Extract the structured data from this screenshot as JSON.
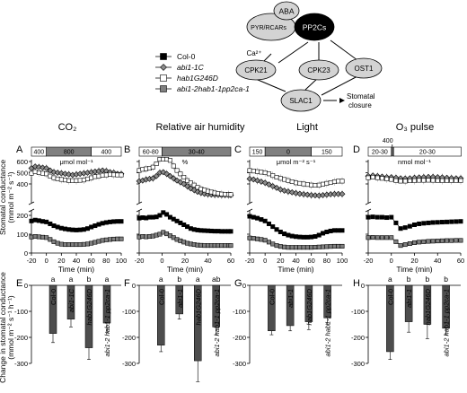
{
  "colors": {
    "col0": "#000000",
    "abi1": "#8c8c8c",
    "hab1": "#ffffff",
    "quad": "#808080",
    "bar_gray": "#808080",
    "bar_dark": "#4d4d4d",
    "node_light": "#d3d3d3",
    "node_dark": "#000000"
  },
  "diagram": {
    "nodes": {
      "aba": "ABA",
      "pyr": "PYR/RCARs",
      "pp2c": "PP2Cs",
      "ca": "Ca²⁺",
      "cpk21": "CPK21",
      "cpk23": "CPK23",
      "ost1": "OST1",
      "slac1": "SLAC1",
      "closure_line1": "Stomatal",
      "closure_line2": "closure"
    }
  },
  "legend": {
    "entries": [
      {
        "label": "Col-0",
        "marker": "square",
        "fill": "#000000"
      },
      {
        "label": "abi1-1C",
        "marker": "diamond",
        "fill": "#8c8c8c"
      },
      {
        "label": "hab1G246D",
        "marker": "square",
        "fill": "#ffffff"
      },
      {
        "label": "abi1-2hab1-1pp2ca-1",
        "marker": "square",
        "fill": "#808080"
      }
    ]
  },
  "axis_labels": {
    "y_top": "Stomatal conductance",
    "y_top_unit": "(mmol m⁻² s⁻¹)",
    "y_bottom": "Change in stomatal conductance",
    "y_bottom_unit": "(mmol m⁻² s⁻¹ h⁻¹)",
    "x_time": "Time (min)"
  },
  "chart_data": [
    {
      "panel": "A",
      "column_title": "CO₂",
      "type": "line",
      "treatment_boxes": [
        "400",
        "800",
        "400"
      ],
      "treatment_unit": "μmol mol⁻¹",
      "x": [
        -20,
        -15,
        -10,
        -5,
        0,
        5,
        10,
        15,
        20,
        25,
        30,
        35,
        40,
        45,
        50,
        55,
        60,
        65,
        70,
        75,
        80,
        85,
        90,
        95,
        100
      ],
      "xticks": [
        -20,
        0,
        20,
        40,
        60,
        80,
        100
      ],
      "yticks_upper": [
        400,
        500,
        600
      ],
      "yticks_lower": [
        0,
        100,
        200
      ],
      "series": [
        {
          "name": "abi1-1C",
          "values": [
            540,
            555,
            550,
            545,
            540,
            520,
            505,
            500,
            495,
            490,
            485,
            480,
            485,
            490,
            495,
            500,
            505,
            510,
            515,
            520,
            515,
            505,
            500,
            490,
            490
          ]
        },
        {
          "name": "hab1G246D",
          "values": [
            495,
            510,
            500,
            495,
            490,
            470,
            455,
            445,
            440,
            435,
            430,
            430,
            430,
            432,
            435,
            445,
            455,
            465,
            470,
            478,
            480,
            485,
            482,
            480,
            480
          ]
        },
        {
          "name": "Col-0",
          "values": [
            170,
            175,
            172,
            168,
            165,
            155,
            145,
            138,
            132,
            128,
            125,
            123,
            122,
            123,
            125,
            130,
            138,
            145,
            152,
            158,
            162,
            165,
            167,
            168,
            168
          ]
        },
        {
          "name": "abi1-2hab1-1pp2ca-1",
          "values": [
            85,
            88,
            86,
            84,
            82,
            72,
            60,
            52,
            47,
            45,
            45,
            45,
            45,
            45,
            46,
            48,
            52,
            57,
            62,
            67,
            70,
            72,
            74,
            75,
            75
          ]
        }
      ],
      "bars": {
        "labels": [
          "Col-0",
          "abi1-1C",
          "hab1G246D",
          "abi1-2 hab1-1 pp2ca-1"
        ],
        "values": [
          -185,
          -130,
          -240,
          -145
        ],
        "errors": [
          35,
          30,
          45,
          35
        ],
        "letters": [
          "a",
          "a",
          "b",
          "a"
        ]
      }
    },
    {
      "panel": "B",
      "column_title": "Relative air humidity",
      "type": "line",
      "treatment_boxes": [
        "60-80",
        "30-40"
      ],
      "treatment_unit": "%",
      "x": [
        -20,
        -17,
        -14,
        -11,
        -8,
        -5,
        -2,
        1,
        4,
        7,
        10,
        13,
        16,
        19,
        22,
        25,
        28,
        31,
        34,
        37,
        40,
        43,
        46,
        49,
        52,
        55,
        58,
        60
      ],
      "xticks": [
        -20,
        0,
        20,
        40,
        60
      ],
      "yticks_upper": [
        400,
        500,
        600
      ],
      "yticks_lower": [
        0,
        100,
        200
      ],
      "series": [
        {
          "name": "abi1-1C",
          "values": [
            425,
            430,
            440,
            445,
            450,
            470,
            500,
            505,
            490,
            470,
            450,
            430,
            415,
            400,
            380,
            360,
            345,
            330,
            320,
            312,
            308,
            305,
            303,
            302,
            300,
            300,
            300,
            300
          ]
        },
        {
          "name": "hab1G246D",
          "values": [
            520,
            530,
            535,
            540,
            550,
            580,
            620,
            720,
            665,
            610,
            560,
            520,
            490,
            460,
            430,
            410,
            390,
            370,
            355,
            345,
            335,
            328,
            320,
            315,
            310,
            308,
            306,
            305
          ]
        },
        {
          "name": "Col-0",
          "values": [
            185,
            188,
            186,
            190,
            190,
            192,
            200,
            215,
            205,
            190,
            180,
            170,
            160,
            150,
            140,
            130,
            125,
            122,
            120,
            119,
            118,
            117,
            116,
            116,
            115,
            115,
            115,
            115
          ]
        },
        {
          "name": "abi1-2hab1-1pp2ca-1",
          "values": [
            85,
            88,
            86,
            88,
            90,
            95,
            100,
            110,
            102,
            92,
            82,
            72,
            65,
            58,
            52,
            48,
            45,
            42,
            41,
            40,
            40,
            40,
            40,
            40,
            40,
            40,
            40,
            40
          ]
        }
      ],
      "bars": {
        "labels": [
          "Col-0",
          "abi1-1",
          "hab1G246D",
          "abi1-2 hab1-1 pp2ca-1"
        ],
        "values": [
          -230,
          -110,
          -290,
          -160
        ],
        "errors": [
          25,
          20,
          80,
          30
        ],
        "letters": [
          "a",
          "b",
          "a",
          "ab"
        ]
      }
    },
    {
      "panel": "C",
      "column_title": "Light",
      "type": "line",
      "treatment_boxes": [
        "150",
        "0",
        "150"
      ],
      "treatment_unit": "μmol m⁻² s⁻¹",
      "x": [
        -20,
        -15,
        -10,
        -5,
        0,
        5,
        10,
        15,
        20,
        25,
        30,
        35,
        40,
        45,
        50,
        55,
        60,
        65,
        70,
        75,
        80,
        85,
        90,
        95,
        100
      ],
      "xticks": [
        -20,
        0,
        20,
        40,
        60,
        80,
        100
      ],
      "yticks_upper": [
        400,
        500,
        600
      ],
      "yticks_lower": [
        0,
        100,
        200
      ],
      "series": [
        {
          "name": "hab1G246D",
          "values": [
            520,
            515,
            510,
            505,
            500,
            490,
            475,
            460,
            450,
            440,
            430,
            420,
            410,
            405,
            400,
            395,
            390,
            388,
            390,
            398,
            405,
            412,
            420,
            425,
            425
          ]
        },
        {
          "name": "abi1-1C",
          "values": [
            445,
            440,
            430,
            420,
            410,
            395,
            380,
            365,
            350,
            340,
            332,
            325,
            318,
            312,
            308,
            304,
            300,
            298,
            296,
            300,
            304,
            308,
            310,
            310,
            310
          ]
        },
        {
          "name": "Col-0",
          "values": [
            195,
            190,
            185,
            178,
            170,
            155,
            140,
            125,
            112,
            102,
            95,
            90,
            87,
            85,
            84,
            84,
            85,
            88,
            95,
            105,
            112,
            117,
            120,
            120,
            120
          ]
        },
        {
          "name": "abi1-2hab1-1pp2ca-1",
          "values": [
            80,
            78,
            75,
            72,
            68,
            58,
            48,
            40,
            35,
            32,
            30,
            30,
            30,
            30,
            30,
            30,
            30,
            31,
            32,
            33,
            34,
            35,
            36,
            36,
            36
          ]
        }
      ],
      "bars": {
        "labels": [
          "Col-0",
          "abi1-1",
          "hab1G246D",
          "abi1-2 hab1-1 pp2ca-1"
        ],
        "values": [
          -175,
          -155,
          -140,
          -125
        ],
        "errors": [
          15,
          20,
          30,
          25
        ],
        "letters": [
          "",
          "",
          "",
          ""
        ]
      }
    },
    {
      "panel": "D",
      "column_title": "O₃ pulse",
      "type": "line",
      "treatment_boxes": [
        "20-30",
        "20-30"
      ],
      "pulse_label": "400",
      "treatment_unit": "nmol mol⁻¹",
      "x": [
        -20,
        -16,
        -12,
        -8,
        -4,
        0,
        4,
        8,
        12,
        16,
        20,
        24,
        28,
        32,
        36,
        40,
        44,
        48,
        52,
        56,
        60
      ],
      "xticks": [
        -20,
        0,
        20,
        40,
        60
      ],
      "yticks_upper": [
        400,
        500,
        600
      ],
      "yticks_lower": [
        0,
        100,
        200
      ],
      "series": [
        {
          "name": "abi1-1C",
          "values": [
            470,
            475,
            470,
            465,
            460,
            460,
            455,
            450,
            448,
            450,
            455,
            458,
            460,
            462,
            462,
            460,
            458,
            455,
            452,
            450,
            450
          ]
        },
        {
          "name": "hab1G246D",
          "values": [
            455,
            460,
            455,
            450,
            445,
            440,
            430,
            425,
            425,
            428,
            430,
            432,
            432,
            433,
            432,
            430,
            430,
            430,
            430,
            430,
            430
          ]
        },
        {
          "name": "Col-0",
          "values": [
            190,
            192,
            190,
            190,
            188,
            190,
            160,
            130,
            135,
            142,
            150,
            155,
            158,
            160,
            162,
            163,
            164,
            165,
            166,
            167,
            168
          ]
        },
        {
          "name": "abi1-2hab1-1pp2ca-1",
          "values": [
            82,
            83,
            82,
            82,
            82,
            82,
            60,
            40,
            45,
            50,
            55,
            58,
            60,
            62,
            63,
            64,
            65,
            66,
            66,
            67,
            67
          ]
        }
      ],
      "bars": {
        "labels": [
          "Col-0",
          "abi1-1",
          "hab1G246D",
          "abi1-2 hab1-1 pp2ca-1"
        ],
        "values": [
          -255,
          -140,
          -150,
          -165
        ],
        "errors": [
          30,
          40,
          55,
          25
        ],
        "letters": [
          "a",
          "b",
          "b",
          "b"
        ]
      }
    }
  ]
}
